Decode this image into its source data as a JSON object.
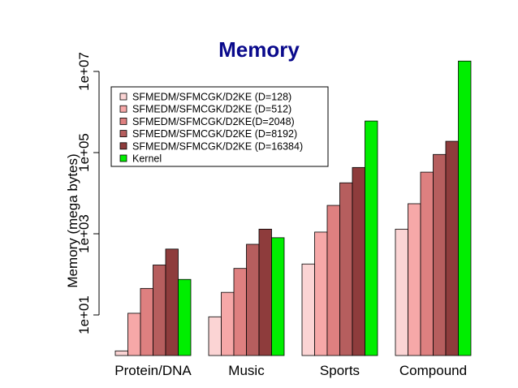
{
  "chart_data": {
    "type": "bar",
    "title": "Memory",
    "xlabel": "",
    "ylabel": "Memory (mega bytes)",
    "yscale": "log",
    "ylim": [
      1,
      20000000
    ],
    "yticks": [
      10,
      1000,
      100000,
      10000000
    ],
    "ytick_labels": [
      "1e+01",
      "1e+03",
      "1e+05",
      "1e+07"
    ],
    "categories": [
      "Protein/DNA",
      "Music",
      "Sports",
      "Compound"
    ],
    "series": [
      {
        "name": "SFMEDM/SFMCGK/D2KE (D=128)",
        "color": "#fbd4d4",
        "values": [
          1.3,
          9,
          180,
          1300
        ]
      },
      {
        "name": "SFMEDM/SFMCGK/D2KE (D=512)",
        "color": "#f6a8a8",
        "values": [
          11,
          36,
          1100,
          5500
        ]
      },
      {
        "name": "SFMEDM/SFMCGK/D2KE(D=2048)",
        "color": "#de8080",
        "values": [
          45,
          140,
          5000,
          33000
        ]
      },
      {
        "name": "SFMEDM/SFMCGK/D2KE (D=8192)",
        "color": "#b65e5e",
        "values": [
          170,
          550,
          18000,
          90000
        ]
      },
      {
        "name": "SFMEDM/SFMCGK/D2KE (D=16384)",
        "color": "#8e3c3c",
        "values": [
          420,
          1300,
          43000,
          190000
        ]
      },
      {
        "name": "Kernel",
        "color": "#00ee00",
        "values": [
          75,
          800,
          600000,
          18000000
        ]
      }
    ],
    "legend_position": "top-left",
    "grid": false
  }
}
